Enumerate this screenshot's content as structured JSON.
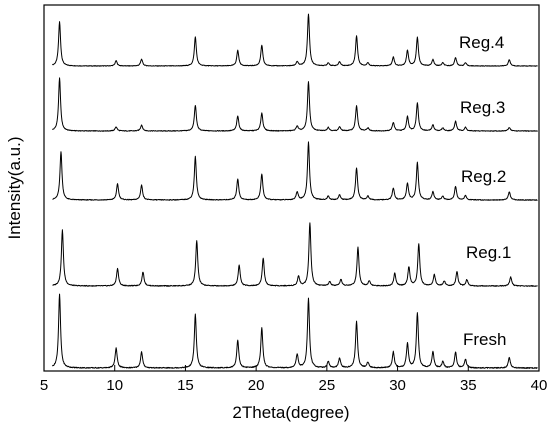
{
  "chart_data": {
    "type": "line",
    "title": "",
    "xlabel": "2Theta(degree)",
    "ylabel": "Intensity(a.u.)",
    "xlim": [
      5,
      40
    ],
    "xticks": [
      5,
      10,
      15,
      20,
      25,
      30,
      35,
      40
    ],
    "y_ticks_shown": false,
    "grid": false,
    "legend": "inline labels at right of each trace",
    "series": [
      {
        "name": "Reg.4",
        "peaks": [
          [
            6.1,
            0.85
          ],
          [
            10.1,
            0.1
          ],
          [
            11.9,
            0.13
          ],
          [
            15.7,
            0.56
          ],
          [
            18.7,
            0.3
          ],
          [
            20.4,
            0.4
          ],
          [
            22.9,
            0.08
          ],
          [
            23.7,
            1.0
          ],
          [
            25.1,
            0.06
          ],
          [
            25.9,
            0.08
          ],
          [
            27.1,
            0.58
          ],
          [
            27.9,
            0.06
          ],
          [
            29.7,
            0.17
          ],
          [
            30.7,
            0.3
          ],
          [
            31.4,
            0.55
          ],
          [
            32.5,
            0.12
          ],
          [
            33.2,
            0.06
          ],
          [
            34.1,
            0.16
          ],
          [
            34.8,
            0.06
          ],
          [
            37.9,
            0.12
          ]
        ]
      },
      {
        "name": "Reg.3",
        "peaks": [
          [
            6.1,
            0.88
          ],
          [
            10.1,
            0.07
          ],
          [
            11.9,
            0.1
          ],
          [
            15.7,
            0.43
          ],
          [
            18.7,
            0.25
          ],
          [
            20.4,
            0.3
          ],
          [
            22.9,
            0.08
          ],
          [
            23.7,
            0.82
          ],
          [
            25.1,
            0.06
          ],
          [
            25.9,
            0.07
          ],
          [
            27.1,
            0.42
          ],
          [
            27.9,
            0.05
          ],
          [
            29.7,
            0.14
          ],
          [
            30.7,
            0.24
          ],
          [
            31.4,
            0.47
          ],
          [
            32.5,
            0.1
          ],
          [
            33.2,
            0.05
          ],
          [
            34.1,
            0.16
          ],
          [
            34.8,
            0.06
          ],
          [
            37.9,
            0.06
          ]
        ]
      },
      {
        "name": "Reg.2",
        "peaks": [
          [
            6.2,
            0.78
          ],
          [
            10.2,
            0.26
          ],
          [
            11.9,
            0.24
          ],
          [
            15.7,
            0.7
          ],
          [
            18.7,
            0.34
          ],
          [
            20.4,
            0.42
          ],
          [
            22.9,
            0.13
          ],
          [
            23.7,
            0.93
          ],
          [
            25.1,
            0.06
          ],
          [
            25.9,
            0.08
          ],
          [
            27.1,
            0.52
          ],
          [
            27.9,
            0.06
          ],
          [
            29.7,
            0.19
          ],
          [
            30.7,
            0.27
          ],
          [
            31.4,
            0.6
          ],
          [
            32.5,
            0.13
          ],
          [
            33.2,
            0.06
          ],
          [
            34.1,
            0.22
          ],
          [
            34.8,
            0.07
          ],
          [
            37.9,
            0.13
          ]
        ]
      },
      {
        "name": "Reg.1",
        "peaks": [
          [
            6.3,
            0.8
          ],
          [
            10.2,
            0.25
          ],
          [
            12.0,
            0.2
          ],
          [
            15.8,
            0.65
          ],
          [
            18.8,
            0.3
          ],
          [
            20.5,
            0.4
          ],
          [
            23.0,
            0.14
          ],
          [
            23.8,
            0.9
          ],
          [
            25.2,
            0.06
          ],
          [
            26.0,
            0.09
          ],
          [
            27.2,
            0.55
          ],
          [
            28.0,
            0.07
          ],
          [
            29.8,
            0.18
          ],
          [
            30.8,
            0.27
          ],
          [
            31.5,
            0.6
          ],
          [
            32.6,
            0.16
          ],
          [
            33.3,
            0.07
          ],
          [
            34.2,
            0.2
          ],
          [
            34.9,
            0.09
          ],
          [
            38.0,
            0.13
          ]
        ]
      },
      {
        "name": "Fresh",
        "peaks": [
          [
            6.1,
            0.92
          ],
          [
            10.1,
            0.25
          ],
          [
            11.9,
            0.2
          ],
          [
            15.7,
            0.67
          ],
          [
            18.7,
            0.35
          ],
          [
            20.4,
            0.5
          ],
          [
            22.9,
            0.17
          ],
          [
            23.7,
            0.87
          ],
          [
            25.1,
            0.08
          ],
          [
            25.9,
            0.12
          ],
          [
            27.1,
            0.58
          ],
          [
            27.9,
            0.07
          ],
          [
            29.7,
            0.2
          ],
          [
            30.7,
            0.3
          ],
          [
            31.4,
            0.69
          ],
          [
            32.5,
            0.2
          ],
          [
            33.2,
            0.08
          ],
          [
            34.1,
            0.2
          ],
          [
            34.8,
            0.11
          ],
          [
            37.9,
            0.13
          ]
        ]
      }
    ]
  }
}
